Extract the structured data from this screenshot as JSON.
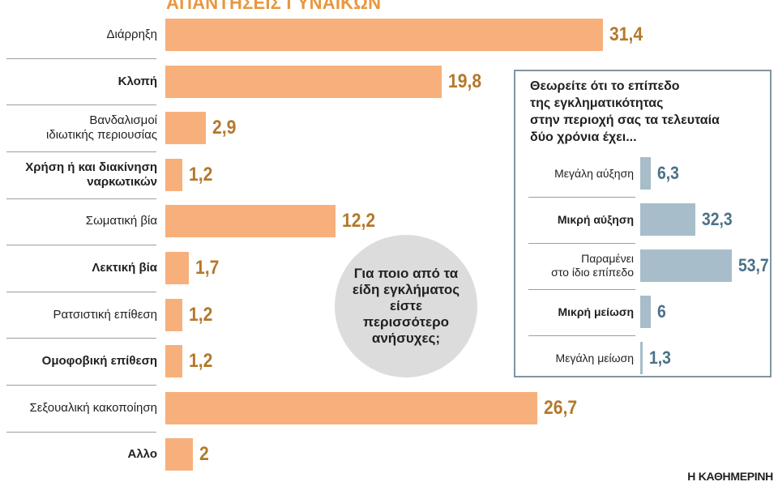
{
  "chart_data": [
    {
      "type": "bar",
      "orientation": "horizontal",
      "title": "ΑΠΑΝΤΗΣΕΙΣ ΓΥΝΑΙΚΩΝ",
      "categories": [
        "Διάρρηξη",
        "Κλοπή",
        "Βανδαλισμοί ιδιωτικής περιουσίας",
        "Χρήση ή και διακίνηση ναρκωτικών",
        "Σωματική βία",
        "Λεκτική βία",
        "Ρατσιστική επίθεση",
        "Ομοφοβική επίθεση",
        "Σεξουαλική κακοποίηση",
        "Αλλο"
      ],
      "label_lines": [
        [
          "Διάρρηξη"
        ],
        [
          "Κλοπή"
        ],
        [
          "Βανδαλισμοί",
          "ιδιωτικής περιουσίας"
        ],
        [
          "Χρήση ή και διακίνηση",
          "ναρκωτικών"
        ],
        [
          "Σωματική βία"
        ],
        [
          "Λεκτική βία"
        ],
        [
          "Ρατσιστική επίθεση"
        ],
        [
          "Ομοφοβική επίθεση"
        ],
        [
          "Σεξουαλική κακοποίηση"
        ],
        [
          "Αλλο"
        ]
      ],
      "bold_labels": [
        false,
        true,
        false,
        true,
        false,
        true,
        false,
        true,
        false,
        true
      ],
      "values": [
        31.4,
        19.8,
        2.9,
        1.2,
        12.2,
        1.7,
        1.2,
        1.2,
        26.7,
        2
      ],
      "value_labels": [
        "31,4",
        "19,8",
        "2,9",
        "1,2",
        "12,2",
        "1,7",
        "1,2",
        "1,2",
        "26,7",
        "2"
      ],
      "xlabel": "",
      "ylabel": "",
      "grid": false,
      "bar_color": "#f7b07b",
      "value_color": "#b4782b",
      "title_color": "#e8973f"
    },
    {
      "type": "bar",
      "orientation": "horizontal",
      "title": "Θεωρείτε ότι το επίπεδο της εγκληματικότητας στην περιοχή σας τα τελευταία δύο χρόνια έχει...",
      "title_lines": [
        "Θεωρείτε ότι το επίπεδο",
        "της εγκληματικότητας",
        "στην περιοχή σας τα τελευταία",
        "δύο χρόνια έχει..."
      ],
      "categories": [
        "Μεγάλη αύξηση",
        "Μικρή αύξηση",
        "Παραμένει στο ίδιο επίπεδο",
        "Μικρή μείωση",
        "Μεγάλη μείωση"
      ],
      "label_lines": [
        [
          "Μεγάλη αύξηση"
        ],
        [
          "Μικρή αύξηση"
        ],
        [
          "Παραμένει",
          "στο ίδιο επίπεδο"
        ],
        [
          "Μικρή μείωση"
        ],
        [
          "Μεγάλη μείωση"
        ]
      ],
      "bold_labels": [
        false,
        true,
        false,
        true,
        false
      ],
      "values": [
        6.3,
        32.3,
        53.7,
        6,
        1.3
      ],
      "value_labels": [
        "6,3",
        "32,3",
        "53,7",
        "6",
        "1,3"
      ],
      "xlabel": "",
      "ylabel": "",
      "grid": false,
      "bar_color": "#a7bdc9",
      "value_color": "#4a7187",
      "border_color": "#7f95a2"
    }
  ],
  "header": "ΑΠΑΝΤΗΣΕΙΣ ΓΥΝΑΙΚΩΝ",
  "center_question": "Για ποιο από τα είδη εγκλήματος είστε περισσότερο ανήσυχες;",
  "source": "Η ΚΑΘΗΜΕΡΙΝΗ"
}
